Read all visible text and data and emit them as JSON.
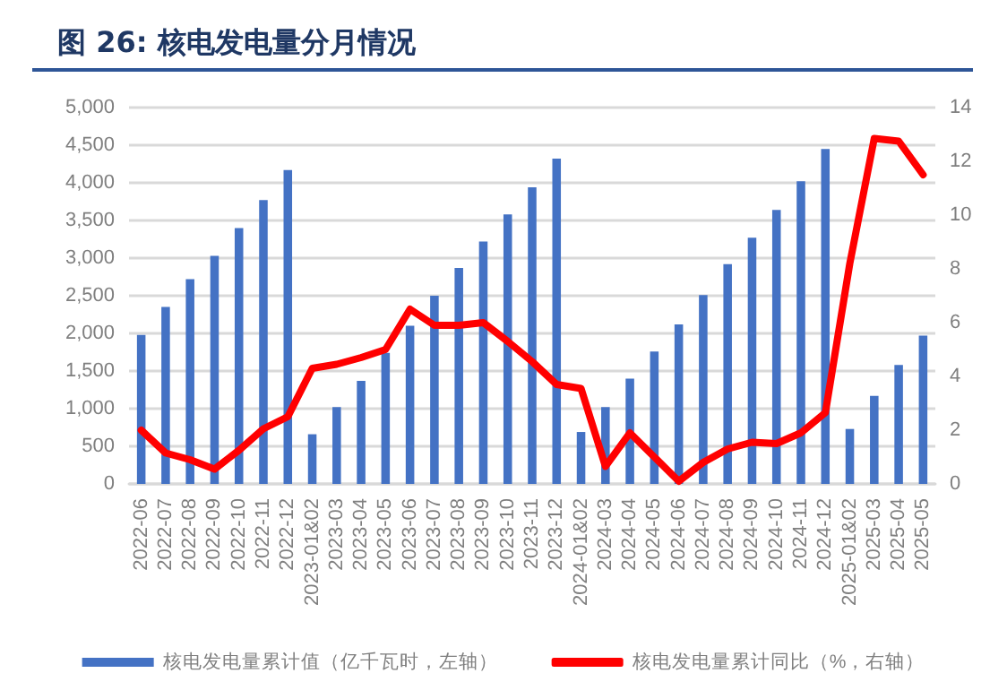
{
  "chart_data": {
    "type": "bar",
    "title": "图 26:  核电发电量分月情况",
    "categories": [
      "2022-06",
      "2022-07",
      "2022-08",
      "2022-09",
      "2022-10",
      "2022-11",
      "2022-12",
      "2023-01&02",
      "2023-03",
      "2023-04",
      "2023-05",
      "2023-06",
      "2023-07",
      "2023-08",
      "2023-09",
      "2023-10",
      "2023-11",
      "2023-12",
      "2024-01&02",
      "2024-03",
      "2024-04",
      "2024-05",
      "2024-06",
      "2024-07",
      "2024-08",
      "2024-09",
      "2024-10",
      "2024-11",
      "2024-12",
      "2025-01&02",
      "2025-03",
      "2025-04",
      "2025-05"
    ],
    "series": [
      {
        "name": "核电发电量累计值（亿千瓦时，左轴）",
        "color": "#4472c4",
        "values": [
          1980,
          2350,
          2720,
          3030,
          3400,
          3770,
          4170,
          660,
          1020,
          1370,
          1740,
          2100,
          2500,
          2870,
          3220,
          3580,
          3940,
          4320,
          690,
          1020,
          1400,
          1760,
          2120,
          2510,
          2920,
          3270,
          3640,
          4020,
          4450,
          730,
          1170,
          1580,
          1970
        ]
      },
      {
        "name": "核电发电量累计同比（%，右轴）",
        "type": "line",
        "axis": "y2",
        "color": "#ff0000",
        "values": [
          2.0,
          1.15,
          0.9,
          0.55,
          1.25,
          2.05,
          2.5,
          4.3,
          4.45,
          4.7,
          5.0,
          6.5,
          5.9,
          5.9,
          6.0,
          5.3,
          4.55,
          3.7,
          3.55,
          0.65,
          1.9,
          1.0,
          0.1,
          0.8,
          1.3,
          1.55,
          1.5,
          1.9,
          2.65,
          8.2,
          12.85,
          12.75,
          11.5
        ]
      }
    ],
    "ylim": [
      0,
      5000
    ],
    "yticks": [
      0,
      {
        "value": 500,
        "label": "500"
      },
      {
        "value": 1000,
        "label": "1,000"
      },
      {
        "value": 1500,
        "label": "1,500"
      },
      {
        "value": 2000,
        "label": "2,000"
      },
      {
        "value": 2500,
        "label": "2,500"
      },
      {
        "value": 3000,
        "label": "3,000"
      },
      {
        "value": 3500,
        "label": "3,500"
      },
      {
        "value": 4000,
        "label": "4,000"
      },
      {
        "value": 4500,
        "label": "4,500"
      },
      {
        "value": 5000,
        "label": "5,000"
      }
    ],
    "y2lim": [
      0,
      14
    ],
    "y2ticks": [
      0,
      2,
      4,
      6,
      8,
      10,
      12,
      14
    ],
    "grid": "y",
    "legend": "bottom",
    "marker": "none",
    "line_style": "solid"
  }
}
